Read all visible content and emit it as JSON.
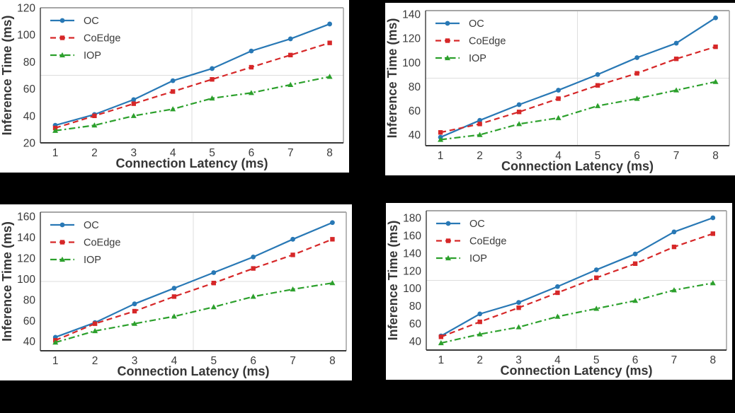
{
  "figure": {
    "background": "#000000",
    "panel_background": "#ffffff",
    "grid_color": "#dedede",
    "spine_dark": "#3a3a3a",
    "spine_light": "#a6a6a6",
    "tick_color": "#3a3a3a",
    "label_color": "#363636",
    "legend_text_color": "#3a3a3a"
  },
  "legend": {
    "position": "upper-left",
    "items": [
      {
        "label": "OC"
      },
      {
        "label": "CoEdge"
      },
      {
        "label": "IOP"
      }
    ]
  },
  "chart_data": [
    {
      "type": "line",
      "position": "top-left",
      "xlabel": "Connection Latency (ms)",
      "ylabel": "Inference Time (ms)",
      "x": [
        1,
        2,
        3,
        4,
        5,
        6,
        7,
        8
      ],
      "xticks": [
        1,
        2,
        3,
        4,
        5,
        6,
        7,
        8
      ],
      "yticks": [
        20,
        40,
        60,
        80,
        100,
        120
      ],
      "xlim": [
        0.62,
        8.35
      ],
      "ylim": [
        20,
        120
      ],
      "grid": "center-cross",
      "series": [
        {
          "name": "OC",
          "color": "#2878b5",
          "line_style": "solid",
          "marker": "circle",
          "values": [
            33,
            41,
            52,
            66,
            75,
            88,
            97,
            108
          ]
        },
        {
          "name": "CoEdge",
          "color": "#d62728",
          "line_style": "dashed",
          "marker": "square",
          "values": [
            31,
            40,
            49,
            58,
            67,
            76,
            85,
            94
          ]
        },
        {
          "name": "IOP",
          "color": "#2ca02c",
          "line_style": "dashdot",
          "marker": "triangle",
          "values": [
            29,
            33,
            40,
            45,
            53,
            57,
            63,
            69
          ]
        }
      ]
    },
    {
      "type": "line",
      "position": "top-right",
      "xlabel": "Connection Latency (ms)",
      "ylabel": "Inference Time (ms)",
      "x": [
        1,
        2,
        3,
        4,
        5,
        6,
        7,
        8
      ],
      "xticks": [
        1,
        2,
        3,
        4,
        5,
        6,
        7,
        8
      ],
      "yticks": [
        40,
        60,
        80,
        100,
        120,
        140
      ],
      "xlim": [
        0.62,
        8.35
      ],
      "ylim": [
        31,
        143
      ],
      "grid": "center-cross",
      "series": [
        {
          "name": "OC",
          "color": "#2878b5",
          "line_style": "solid",
          "marker": "circle",
          "values": [
            38,
            52,
            65,
            77,
            90,
            104,
            116,
            137
          ]
        },
        {
          "name": "CoEdge",
          "color": "#d62728",
          "line_style": "dashed",
          "marker": "square",
          "values": [
            42,
            49,
            59,
            70,
            81,
            91,
            103,
            113
          ]
        },
        {
          "name": "IOP",
          "color": "#2ca02c",
          "line_style": "dashdot",
          "marker": "triangle",
          "values": [
            36,
            40,
            49,
            54,
            64,
            70,
            77,
            84
          ]
        }
      ]
    },
    {
      "type": "line",
      "position": "bottom-left",
      "xlabel": "Connection Latency (ms)",
      "ylabel": "Inference Time (ms)",
      "x": [
        1,
        2,
        3,
        4,
        5,
        6,
        7,
        8
      ],
      "xticks": [
        1,
        2,
        3,
        4,
        5,
        6,
        7,
        8
      ],
      "yticks": [
        40,
        60,
        80,
        100,
        120,
        140,
        160
      ],
      "xlim": [
        0.62,
        8.35
      ],
      "ylim": [
        31,
        164
      ],
      "grid": "center-cross",
      "series": [
        {
          "name": "OC",
          "color": "#2878b5",
          "line_style": "solid",
          "marker": "circle",
          "values": [
            44,
            58,
            76,
            91,
            106,
            121,
            138,
            154
          ]
        },
        {
          "name": "CoEdge",
          "color": "#d62728",
          "line_style": "dashed",
          "marker": "square",
          "values": [
            41,
            57,
            69,
            83,
            96,
            110,
            123,
            138
          ]
        },
        {
          "name": "IOP",
          "color": "#2ca02c",
          "line_style": "dashdot",
          "marker": "triangle",
          "values": [
            39,
            50,
            57,
            64,
            73,
            83,
            90,
            96
          ]
        }
      ]
    },
    {
      "type": "line",
      "position": "bottom-right",
      "xlabel": "Connection Latency (ms)",
      "ylabel": "Inference Time (ms)",
      "x": [
        1,
        2,
        3,
        4,
        5,
        6,
        7,
        8
      ],
      "xticks": [
        1,
        2,
        3,
        4,
        5,
        6,
        7,
        8
      ],
      "yticks": [
        40,
        60,
        80,
        100,
        120,
        140,
        160,
        180
      ],
      "xlim": [
        0.62,
        8.35
      ],
      "ylim": [
        30,
        188
      ],
      "grid": "center-cross",
      "series": [
        {
          "name": "OC",
          "color": "#2878b5",
          "line_style": "solid",
          "marker": "circle",
          "values": [
            46,
            71,
            84,
            102,
            121,
            139,
            164,
            180
          ]
        },
        {
          "name": "CoEdge",
          "color": "#d62728",
          "line_style": "dashed",
          "marker": "square",
          "values": [
            45,
            62,
            78,
            95,
            112,
            128,
            147,
            162
          ]
        },
        {
          "name": "IOP",
          "color": "#2ca02c",
          "line_style": "dashdot",
          "marker": "triangle",
          "values": [
            38,
            48,
            56,
            68,
            77,
            86,
            98,
            106
          ]
        }
      ]
    }
  ]
}
